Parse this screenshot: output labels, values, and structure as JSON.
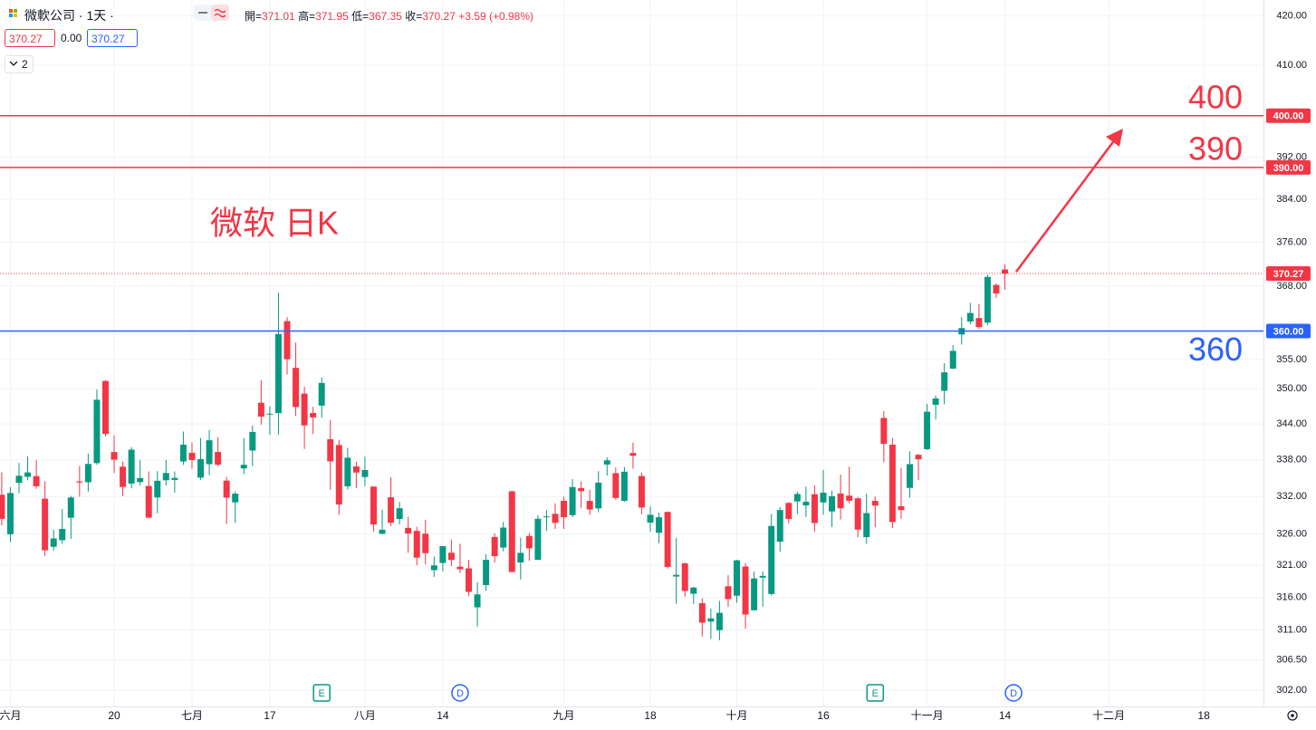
{
  "chart_data": {
    "type": "candlestick",
    "title": "微软 日K",
    "up_color": "#089981",
    "down_color": "#f23645",
    "log": true,
    "grid": true,
    "xlim": [
      -0.2,
      145.9
    ],
    "ylim": [
      299.6,
      423.3
    ],
    "x": [
      0,
      1,
      2,
      3,
      4,
      5,
      6,
      7,
      8,
      9,
      10,
      11,
      12,
      13,
      14,
      15,
      16,
      17,
      18,
      19,
      20,
      21,
      22,
      23,
      24,
      25,
      26,
      27,
      28,
      29,
      30,
      31,
      32,
      33,
      34,
      35,
      36,
      37,
      38,
      39,
      40,
      41,
      42,
      43,
      44,
      45,
      46,
      47,
      48,
      49,
      50,
      51,
      52,
      53,
      54,
      55,
      56,
      57,
      58,
      59,
      60,
      61,
      62,
      63,
      64,
      65,
      66,
      67,
      68,
      69,
      70,
      71,
      72,
      73,
      74,
      75,
      76,
      77,
      78,
      79,
      80,
      81,
      82,
      83,
      84,
      85,
      86,
      87,
      88,
      89,
      90,
      91,
      92,
      93,
      94,
      95,
      96,
      97,
      98,
      99,
      100,
      101,
      102,
      103,
      104,
      105,
      106,
      107,
      108,
      109,
      110,
      111,
      112,
      113,
      114,
      115,
      116
    ],
    "open": [
      332.29,
      325.93,
      334.25,
      335.22,
      335.33,
      331.65,
      323.94,
      324.99,
      328.58,
      334.47,
      334.34,
      337.48,
      351.32,
      339.31,
      336.89,
      334.12,
      334.36,
      333.72,
      331.86,
      334.66,
      334.71,
      337.75,
      339.19,
      335.09,
      337.3,
      339.32,
      334.6,
      331.06,
      336.6,
      339.56,
      347.59,
      345.68,
      345.83,
      361.75,
      353.57,
      349.15,
      345.85,
      347.11,
      341.44,
      340.48,
      333.67,
      336.92,
      335.19,
      333.63,
      326.0,
      331.88,
      328.37,
      326.96,
      326.47,
      326.02,
      320.26,
      321.39,
      323.0,
      320.8,
      320.54,
      314.49,
      317.93,
      325.5,
      323.82,
      332.85,
      321.47,
      325.66,
      321.88,
      328.67,
      329.2,
      331.31,
      329.0,
      333.38,
      331.29,
      330.09,
      337.24,
      335.82,
      331.31,
      339.15,
      335.35,
      327.8,
      326.17,
      329.51,
      319.26,
      321.32,
      316.59,
      315.13,
      312.3,
      310.99,
      317.75,
      316.28,
      320.83,
      314.03,
      319.09,
      316.55,
      324.75,
      330.96,
      331.21,
      330.57,
      332.38,
      331.05,
      329.59,
      332.49,
      332.15,
      331.72,
      325.47,
      331.3,
      345.02,
      340.54,
      330.43,
      333.41,
      338.85,
      339.79,
      347.24,
      349.63,
      353.45,
      359.4,
      361.68,
      362.3,
      361.49,
      368.22,
      371.01
    ],
    "high": [
      335.94,
      333.53,
      337.5,
      338.56,
      338.0,
      334.49,
      326.64,
      329.99,
      332.1,
      336.99,
      339.04,
      349.84,
      351.47,
      342.08,
      337.73,
      340.12,
      338.0,
      336.11,
      336.15,
      337.98,
      336.11,
      342.73,
      340.9,
      341.65,
      342.99,
      341.79,
      335.23,
      332.85,
      341.65,
      343.74,
      351.43,
      346.99,
      366.78,
      362.46,
      357.97,
      350.3,
      346.92,
      351.89,
      344.67,
      341.33,
      340.01,
      337.7,
      338.54,
      333.63,
      329.88,
      335.14,
      331.11,
      328.75,
      327.11,
      328.26,
      322.41,
      324.06,
      325.09,
      324.42,
      321.87,
      318.38,
      322.77,
      326.08,
      327.9,
      332.98,
      325.36,
      326.15,
      328.98,
      329.81,
      330.91,
      331.99,
      334.85,
      334.46,
      333.08,
      336.16,
      338.42,
      336.79,
      336.85,
      340.86,
      335.9,
      330.4,
      329.39,
      329.59,
      325.35,
      321.45,
      317.67,
      315.88,
      314.3,
      315.48,
      319.47,
      321.89,
      321.39,
      320.04,
      320.08,
      329.19,
      330.3,
      331.1,
      332.82,
      333.63,
      333.83,
      336.35,
      332.96,
      335.59,
      336.88,
      331.92,
      332.45,
      332.0,
      346.2,
      341.63,
      336.72,
      339.45,
      339.0,
      347.42,
      348.83,
      354.39,
      357.54,
      362.46,
      365.0,
      364.79,
      370.1,
      368.47,
      371.95
    ],
    "low": [
      327.33,
      324.72,
      332.55,
      334.66,
      333.25,
      322.5,
      323.35,
      324.41,
      325.16,
      331.99,
      332.81,
      337.2,
      341.95,
      335.86,
      332.07,
      333.34,
      333.81,
      328.49,
      329.3,
      333.81,
      332.62,
      337.2,
      336.57,
      334.73,
      335.5,
      337.0,
      327.59,
      327.75,
      335.67,
      337.0,
      343.9,
      342.2,
      342.17,
      352.44,
      345.37,
      339.83,
      342.31,
      345.07,
      333.11,
      329.05,
      333.17,
      333.36,
      333.7,
      326.36,
      325.95,
      327.24,
      327.52,
      323.0,
      321.05,
      321.18,
      319.21,
      320.08,
      320.9,
      319.8,
      316.21,
      311.55,
      317.04,
      321.46,
      323.22,
      319.96,
      318.8,
      321.72,
      321.88,
      326.45,
      326.78,
      326.78,
      328.66,
      330.18,
      329.03,
      329.46,
      335.43,
      331.48,
      331.17,
      336.57,
      329.16,
      326.36,
      324.51,
      320.51,
      315.0,
      316.15,
      315.0,
      310.02,
      309.69,
      309.45,
      314.55,
      315.18,
      311.21,
      314.0,
      314.61,
      316.3,
      323.18,
      327.67,
      329.14,
      328.72,
      326.36,
      329.04,
      327.1,
      328.3,
      330.91,
      325.45,
      324.39,
      327.08,
      337.62,
      326.94,
      328.4,
      331.83,
      334.69,
      339.65,
      344.77,
      347.33,
      353.35,
      357.63,
      361.21,
      360.36,
      361.07,
      365.9,
      367.35
    ],
    "close": [
      328.39,
      332.58,
      335.4,
      335.94,
      333.68,
      323.38,
      325.26,
      326.79,
      331.85,
      334.29,
      337.34,
      348.1,
      342.33,
      338.05,
      333.56,
      339.71,
      335.02,
      328.6,
      334.57,
      335.85,
      335.05,
      340.54,
      337.99,
      338.15,
      341.27,
      337.22,
      331.83,
      332.47,
      337.2,
      342.66,
      345.24,
      345.73,
      359.49,
      355.08,
      346.87,
      343.77,
      345.11,
      350.98,
      337.77,
      330.72,
      338.37,
      335.92,
      336.34,
      327.5,
      326.66,
      327.78,
      330.11,
      326.05,
      322.23,
      322.93,
      321.01,
      324.04,
      321.86,
      320.4,
      316.88,
      316.48,
      321.88,
      322.46,
      327.0,
      319.97,
      322.98,
      323.7,
      328.41,
      328.79,
      327.76,
      328.66,
      333.55,
      332.88,
      329.91,
      334.27,
      337.94,
      331.77,
      336.06,
      338.7,
      330.22,
      329.06,
      328.65,
      320.77,
      319.53,
      317.01,
      317.54,
      312.14,
      312.79,
      313.64,
      315.75,
      321.8,
      313.39,
      318.96,
      319.36,
      327.26,
      329.82,
      328.39,
      332.42,
      331.16,
      327.73,
      332.64,
      332.06,
      330.11,
      331.32,
      326.67,
      329.32,
      330.53,
      340.67,
      327.89,
      329.81,
      337.31,
      338.11,
      346.07,
      348.32,
      352.8,
      356.53,
      360.53,
      363.2,
      360.69,
      369.67,
      366.68,
      370.27
    ],
    "xticks": [
      {
        "value": 1,
        "label": "六月"
      },
      {
        "value": 13,
        "label": "20"
      },
      {
        "value": 22,
        "label": "七月"
      },
      {
        "value": 31,
        "label": "17"
      },
      {
        "value": 42,
        "label": "八月"
      },
      {
        "value": 51,
        "label": "14"
      },
      {
        "value": 65,
        "label": "九月"
      },
      {
        "value": 75,
        "label": "18"
      },
      {
        "value": 85,
        "label": "十月"
      },
      {
        "value": 95,
        "label": "16"
      },
      {
        "value": 107,
        "label": "十一月"
      },
      {
        "value": 116,
        "label": "14"
      },
      {
        "value": 128,
        "label": "十二月"
      },
      {
        "value": 139,
        "label": "18"
      }
    ],
    "yticks": [
      {
        "value": 302,
        "label": "302.00"
      },
      {
        "value": 306.5,
        "label": "306.50"
      },
      {
        "value": 311,
        "label": "311.00"
      },
      {
        "value": 316,
        "label": "316.00"
      },
      {
        "value": 321,
        "label": "321.00"
      },
      {
        "value": 326,
        "label": "326.00"
      },
      {
        "value": 332,
        "label": "332.00"
      },
      {
        "value": 338,
        "label": "338.00"
      },
      {
        "value": 344,
        "label": "344.00"
      },
      {
        "value": 350,
        "label": "350.00"
      },
      {
        "value": 355,
        "label": "355.00"
      },
      {
        "value": 368,
        "label": "368.00"
      },
      {
        "value": 376,
        "label": "376.00"
      },
      {
        "value": 384,
        "label": "384.00"
      },
      {
        "value": 392,
        "label": "392.00"
      },
      {
        "value": 410,
        "label": "410.00"
      },
      {
        "value": 420,
        "label": "420.00"
      }
    ],
    "levels": [
      {
        "value": 400,
        "label": "400.00",
        "color": "#f23645"
      },
      {
        "value": 390,
        "label": "390.00",
        "color": "#f23645"
      },
      {
        "value": 360,
        "label": "360.00",
        "color": "#2962ff"
      }
    ],
    "events": [
      {
        "x": 37,
        "label": "E"
      },
      {
        "x": 53,
        "label": "D"
      },
      {
        "x": 101,
        "label": "E"
      },
      {
        "x": 117,
        "label": "D"
      }
    ]
  },
  "header": {
    "title": "微軟公司 · 1天 ·",
    "ohlc_labels": [
      "開=",
      "高=",
      "低=",
      "收="
    ],
    "change": "+3.59",
    "change_pct": "(+0.98%)",
    "bid": 370.27,
    "spread": "0.00",
    "ask": 370.27,
    "indicators": 2
  }
}
